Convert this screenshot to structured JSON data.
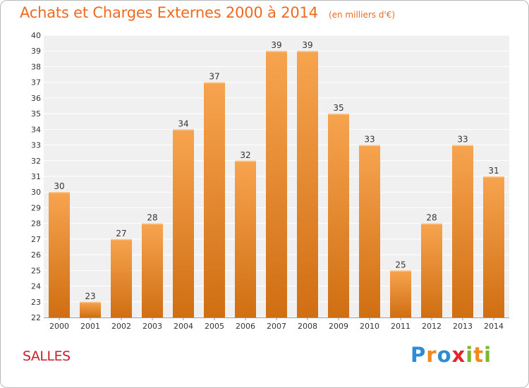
{
  "title": "Achats et Charges Externes 2000 à 2014",
  "subtitle": "(en milliers d'€)",
  "commune": "SALLES",
  "brand": {
    "text": "Proxiti",
    "letters": [
      {
        "ch": "P",
        "color": "#2e8bd6"
      },
      {
        "ch": "r",
        "color": "#f28a1b"
      },
      {
        "ch": "o",
        "color": "#2e8bd6"
      },
      {
        "ch": "x",
        "color": "#e3262e"
      },
      {
        "ch": "i",
        "color": "#7cb82f"
      },
      {
        "ch": "t",
        "color": "#f28a1b"
      },
      {
        "ch": "i",
        "color": "#7cb82f"
      }
    ]
  },
  "colors": {
    "title": "#ef6a1e",
    "commune": "#c8202a",
    "bar_top": "#f7a44f",
    "bar_bottom": "#d06e12",
    "grid": "#ffffff",
    "plot_bg": "#f0f0f0",
    "axis_text": "#333333"
  },
  "chart_data": {
    "type": "bar",
    "categories": [
      "2000",
      "2001",
      "2002",
      "2003",
      "2004",
      "2005",
      "2006",
      "2007",
      "2008",
      "2009",
      "2010",
      "2011",
      "2012",
      "2013",
      "2014"
    ],
    "values": [
      30,
      23,
      27,
      28,
      34,
      37,
      32,
      39,
      39,
      35,
      33,
      25,
      28,
      33,
      31
    ],
    "data_labels": [
      "30",
      "23",
      "27",
      "28",
      "34",
      "37",
      "32",
      "39",
      "39",
      "35",
      "33",
      "25",
      "28",
      "33",
      "31"
    ],
    "ylim": [
      22,
      40
    ],
    "yticks": [
      22,
      23,
      24,
      25,
      26,
      27,
      28,
      29,
      30,
      31,
      32,
      33,
      34,
      35,
      36,
      37,
      38,
      39,
      40
    ],
    "grid": true,
    "xlabel": "",
    "ylabel": ""
  }
}
